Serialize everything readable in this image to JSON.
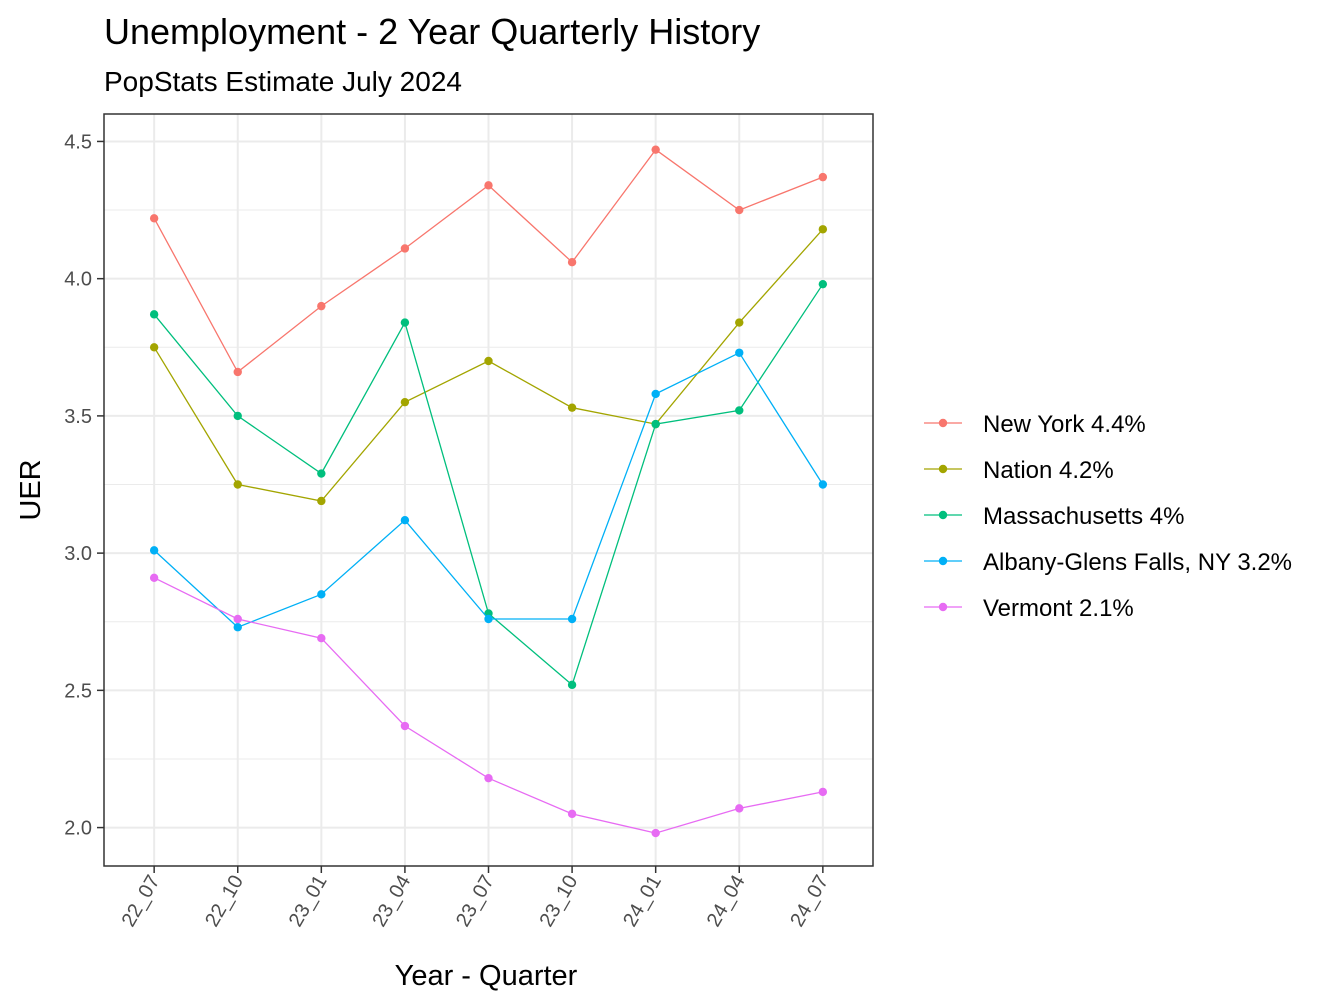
{
  "chart_data": {
    "type": "line",
    "title": "Unemployment - 2 Year Quarterly History",
    "subtitle": "PopStats Estimate July 2024",
    "xlabel": "Year - Quarter",
    "ylabel": "UER",
    "categories": [
      "22_07",
      "22_10",
      "23_01",
      "23_04",
      "23_07",
      "23_10",
      "24_01",
      "24_04",
      "24_07"
    ],
    "ylim": [
      1.86,
      4.6
    ],
    "yticks": [
      "2.0",
      "2.5",
      "3.0",
      "3.5",
      "4.0",
      "4.5"
    ],
    "grid": true,
    "legend_position": "right",
    "series": [
      {
        "name": "New York 4.4%",
        "color": "#F8766D",
        "values": [
          4.22,
          3.66,
          3.9,
          4.11,
          4.34,
          4.06,
          4.47,
          4.25,
          4.37
        ]
      },
      {
        "name": "Nation 4.2%",
        "color": "#A3A500",
        "values": [
          3.75,
          3.25,
          3.19,
          3.55,
          3.7,
          3.53,
          3.47,
          3.84,
          4.18
        ]
      },
      {
        "name": "Massachusetts 4%",
        "color": "#00BF7D",
        "values": [
          3.87,
          3.5,
          3.29,
          3.84,
          2.78,
          2.52,
          3.47,
          3.52,
          3.98
        ]
      },
      {
        "name": "Albany-Glens Falls, NY 3.2%",
        "color": "#00B0F6",
        "values": [
          3.01,
          2.73,
          2.85,
          3.12,
          2.76,
          2.76,
          3.58,
          3.73,
          3.25
        ]
      },
      {
        "name": "Vermont 2.1%",
        "color": "#E76BF3",
        "values": [
          2.91,
          2.76,
          2.69,
          2.37,
          2.18,
          2.05,
          1.98,
          2.07,
          2.13
        ]
      }
    ]
  }
}
